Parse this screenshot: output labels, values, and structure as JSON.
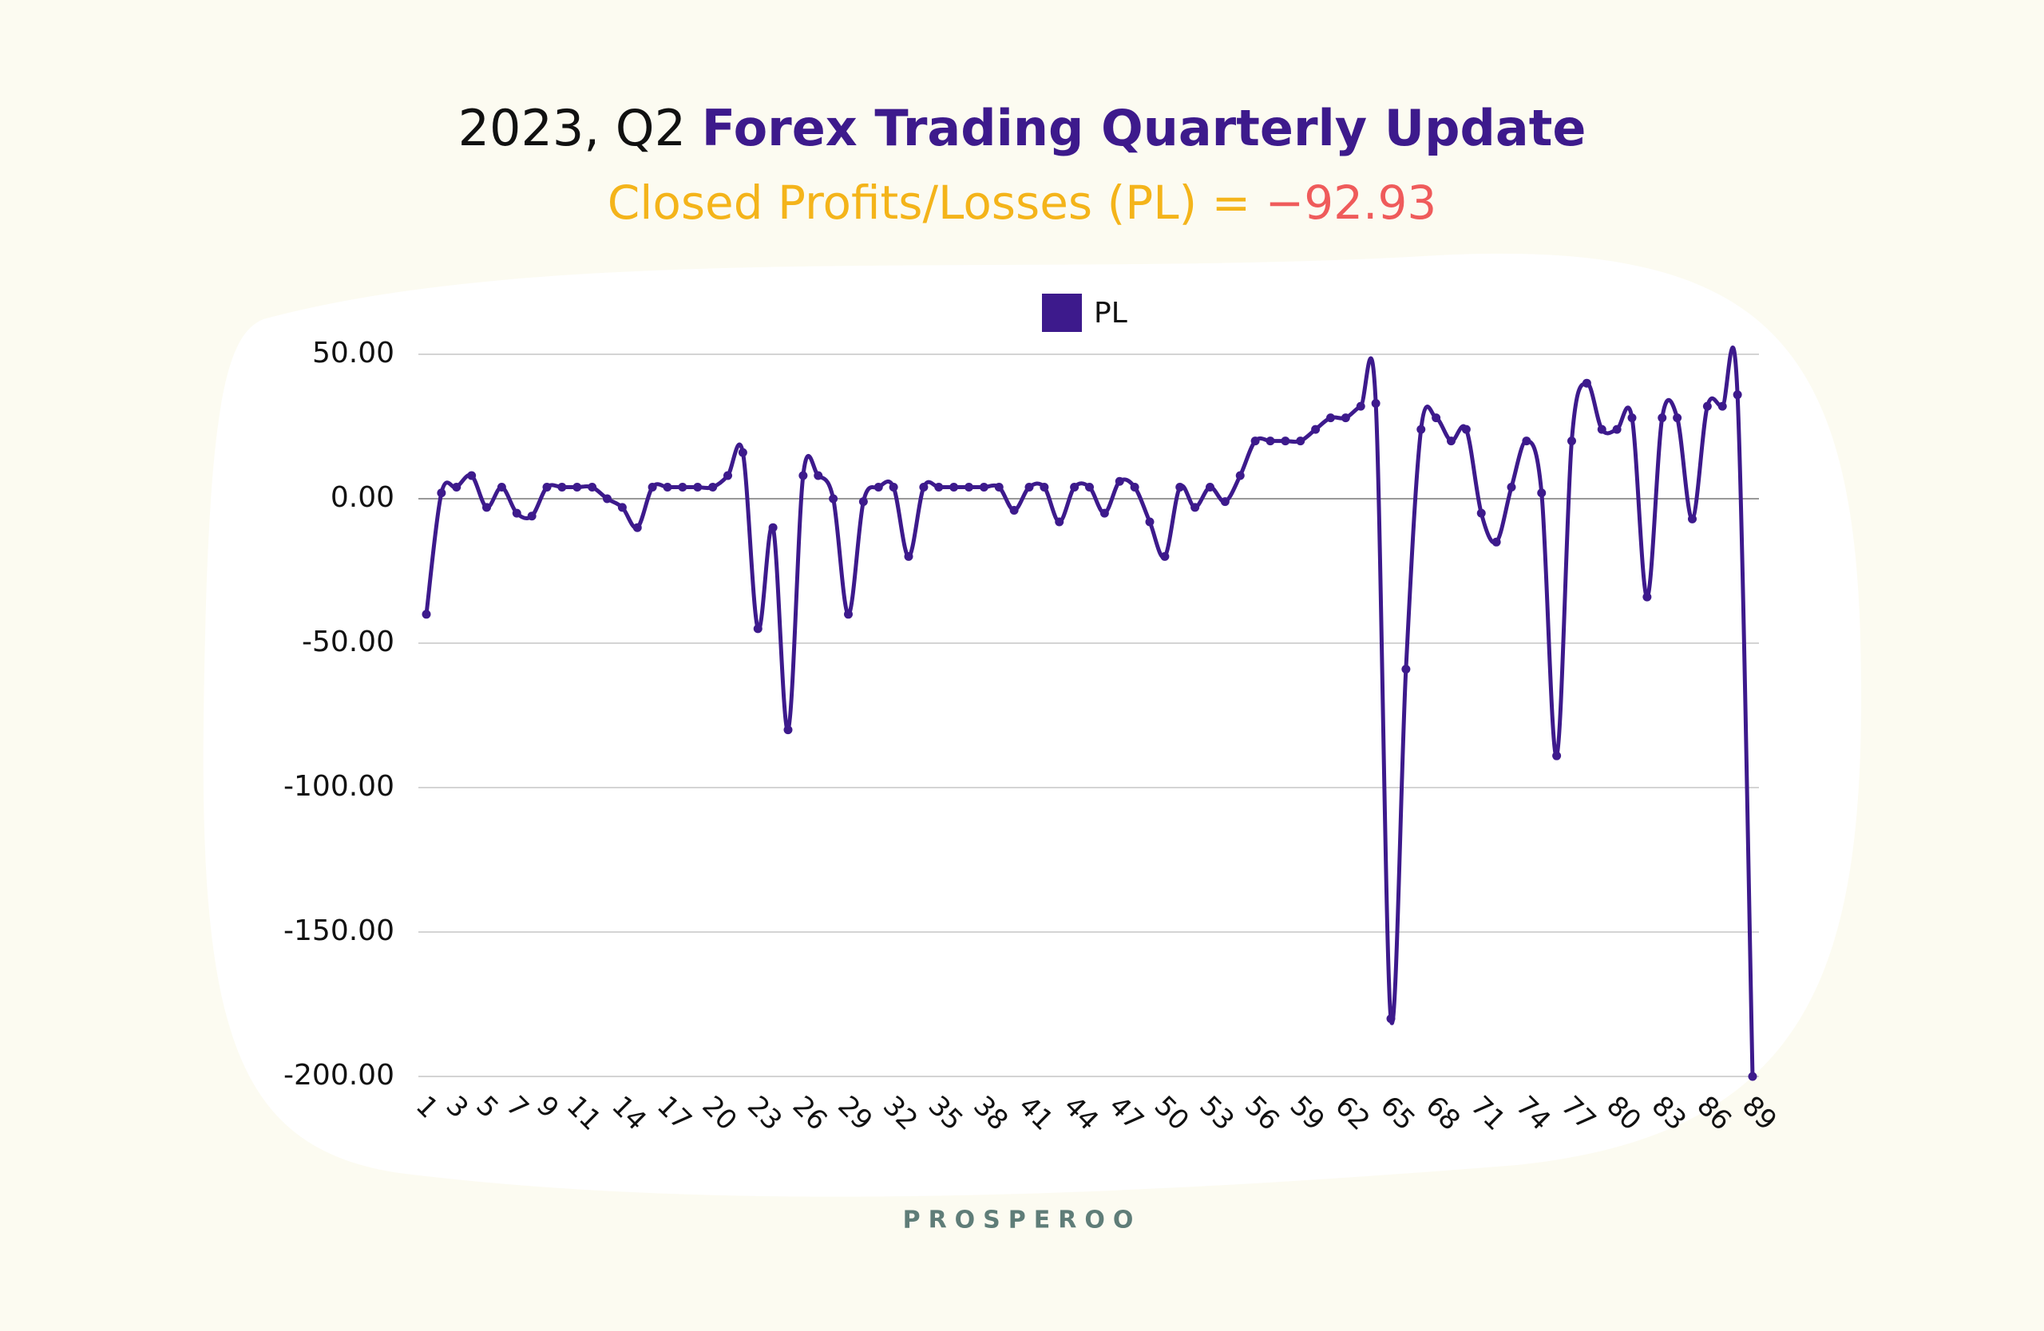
{
  "chart_data": {
    "type": "line",
    "title": {
      "prefix": "2023, Q2",
      "main": "Forex Trading Quarterly Update"
    },
    "subtitle": {
      "prefix": "Closed Profits/Losses (PL) =",
      "total": "−92.93"
    },
    "footer": "PROSPEROO",
    "categories": [
      "1",
      null,
      "3",
      null,
      "5",
      null,
      "7",
      null,
      "9",
      null,
      "11",
      null,
      null,
      "14",
      null,
      null,
      "17",
      null,
      null,
      "20",
      null,
      null,
      "23",
      null,
      null,
      "26",
      null,
      null,
      "29",
      null,
      null,
      "32",
      null,
      null,
      "35",
      null,
      null,
      "38",
      null,
      null,
      "41",
      null,
      null,
      "44",
      null,
      null,
      "47",
      null,
      null,
      "50",
      null,
      null,
      "53",
      null,
      null,
      "56",
      null,
      null,
      "59",
      null,
      null,
      "62",
      null,
      null,
      "65",
      null,
      null,
      "68",
      null,
      null,
      "71",
      null,
      null,
      "74",
      null,
      null,
      "77",
      null,
      null,
      "80",
      null,
      null,
      "83",
      null,
      null,
      "86",
      null,
      null,
      "89"
    ],
    "series": [
      {
        "name": "PL",
        "color": "#3d1a8c",
        "values": [
          -40,
          2,
          4,
          8,
          -3,
          4,
          -5,
          -6,
          4,
          4,
          4,
          4,
          0,
          -3,
          -10,
          4,
          4,
          4,
          4,
          4,
          8,
          16,
          -45,
          -10,
          -80,
          8,
          8,
          0,
          -40,
          -1,
          4,
          4,
          -20,
          4,
          4,
          4,
          4,
          4,
          4,
          -4,
          4,
          4,
          -8,
          4,
          4,
          -5,
          6,
          4,
          -8,
          -20,
          4,
          -3,
          4,
          -1,
          8,
          20,
          20,
          20,
          20,
          24,
          28,
          28,
          32,
          33,
          -180,
          -59,
          24,
          28,
          20,
          24,
          -5,
          -15,
          4,
          20,
          2,
          -89,
          20,
          40,
          24,
          24,
          28,
          -34,
          28,
          28,
          -7,
          32,
          32,
          36,
          -200
        ]
      }
    ],
    "ylim": [
      -200,
      50
    ],
    "yticks": [
      {
        "value": -200,
        "label": "-200.00"
      },
      {
        "value": -150,
        "label": "-150.00"
      },
      {
        "value": -100,
        "label": "-100.00"
      },
      {
        "value": -50,
        "label": "-50.00"
      },
      {
        "value": 0,
        "label": "0.00"
      },
      {
        "value": 50,
        "label": "50.00"
      }
    ],
    "grid": true,
    "legend": "top"
  }
}
